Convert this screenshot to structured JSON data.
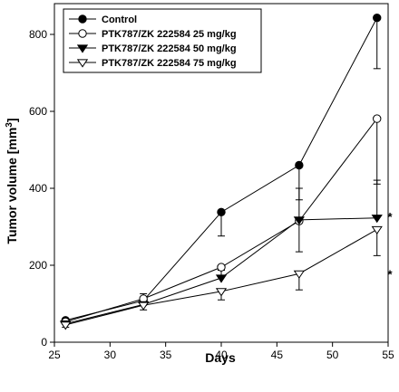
{
  "chart_data": {
    "type": "line",
    "title": "",
    "xlabel": "Days",
    "ylabel": "Tumor volume [mm³]",
    "ylabel_main": "Tumor volume [mm",
    "ylabel_sup": "3",
    "ylabel_end": "]",
    "xlim": [
      25,
      55
    ],
    "ylim": [
      0,
      880
    ],
    "xticks": [
      25,
      30,
      35,
      40,
      45,
      50,
      55
    ],
    "yticks": [
      0,
      200,
      400,
      600,
      800
    ],
    "grid": false,
    "legend_position": "top-left",
    "series": [
      {
        "name": "Control",
        "marker": "filled-circle",
        "x": [
          26,
          33,
          40,
          47,
          54
        ],
        "y": [
          57,
          108,
          338,
          460,
          843
        ],
        "err": [
          8,
          12,
          62,
          90,
          132
        ]
      },
      {
        "name": "PTK787/ZK 222584 25 mg/kg",
        "marker": "open-circle",
        "x": [
          26,
          33,
          40,
          47,
          54
        ],
        "y": [
          53,
          113,
          195,
          315,
          581
        ],
        "err": [
          7,
          12,
          25,
          80,
          170
        ]
      },
      {
        "name": "PTK787/ZK 222584 50 mg/kg",
        "marker": "filled-triangle-down",
        "x": [
          26,
          33,
          40,
          47,
          54
        ],
        "y": [
          48,
          98,
          167,
          318,
          323
        ],
        "err": [
          6,
          28,
          20,
          82,
          98
        ]
      },
      {
        "name": "PTK787/ZK 222584 75 mg/kg",
        "marker": "open-triangle-down",
        "x": [
          26,
          33,
          40,
          47,
          54
        ],
        "y": [
          45,
          96,
          132,
          178,
          293
        ],
        "err": [
          6,
          12,
          22,
          42,
          68
        ]
      }
    ],
    "annotations": [
      {
        "text": "*",
        "x": 54.8,
        "y": 330
      },
      {
        "text": "*",
        "x": 54.8,
        "y": 180
      }
    ]
  }
}
